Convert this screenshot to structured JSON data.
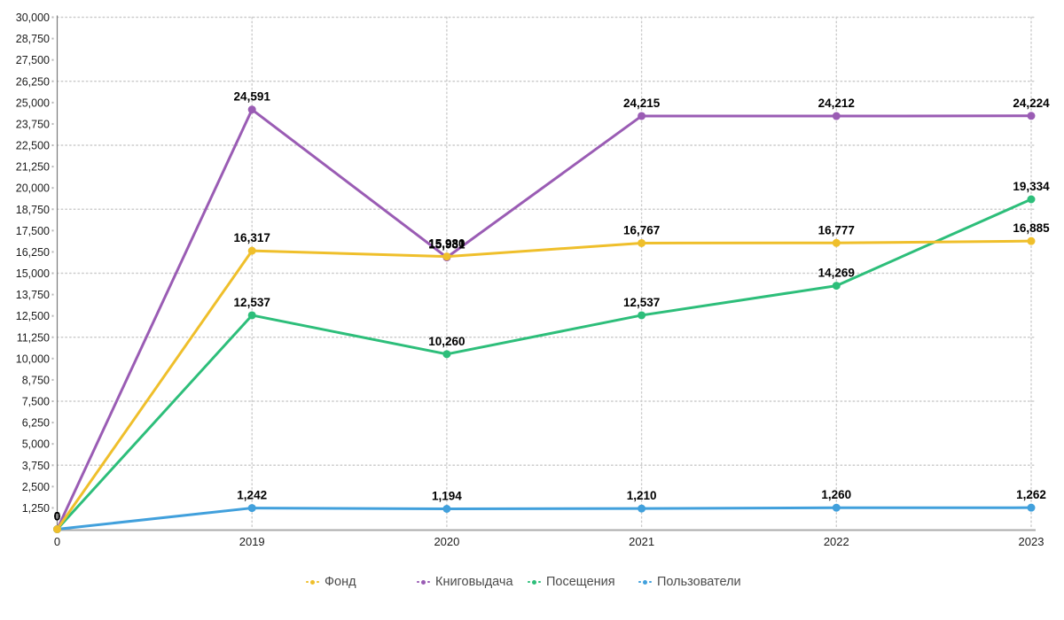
{
  "chart_data": {
    "type": "line",
    "title": "",
    "categories": [
      "0",
      "2019",
      "2020",
      "2021",
      "2022",
      "2023"
    ],
    "series": [
      {
        "id": "fond",
        "name": "Фонд",
        "color": "#EFBF2B",
        "values": [
          0,
          16317,
          15980,
          16767,
          16777,
          16885
        ],
        "labels": [
          "0",
          "16,317",
          "15,980",
          "16,767",
          "16,777",
          "16,885"
        ]
      },
      {
        "id": "knigovydacha",
        "name": "Книговыдача",
        "color": "#9A5CB4",
        "values": [
          0,
          24591,
          15931,
          24215,
          24212,
          24224
        ],
        "labels": [
          "0",
          "24,591",
          "15,931",
          "24,215",
          "24,212",
          "24,224"
        ]
      },
      {
        "id": "poseshcheniya",
        "name": "Посещения",
        "color": "#2DBE7A",
        "values": [
          0,
          12537,
          10260,
          12537,
          14269,
          19334
        ],
        "labels": [
          "0",
          "12,537",
          "10,260",
          "12,537",
          "14,269",
          "19,334"
        ]
      },
      {
        "id": "polzovateli",
        "name": "Пользователи",
        "color": "#41A0DC",
        "values": [
          0,
          1242,
          1194,
          1210,
          1260,
          1262
        ],
        "labels": [
          "0",
          "1,242",
          "1,194",
          "1,210",
          "1,260",
          "1,262"
        ]
      }
    ],
    "xlabel": "",
    "ylabel": "",
    "ylim": [
      0,
      30000
    ],
    "y_tick_step": 1250,
    "gridline_step": 3750,
    "grid": "dotted",
    "legend_position": "bottom"
  },
  "axis": {
    "y_tick_labels": [
      "1,250",
      "2,500",
      "3,750",
      "5,000",
      "6,250",
      "7,500",
      "8,750",
      "10,000",
      "11,250",
      "12,500",
      "13,750",
      "15,000",
      "16,250",
      "17,500",
      "18,750",
      "20,000",
      "21,250",
      "22,500",
      "23,750",
      "25,000",
      "26,250",
      "27,500",
      "28,750",
      "30,000"
    ],
    "x_tick_labels": [
      "0",
      "2019",
      "2020",
      "2021",
      "2022",
      "2023"
    ]
  },
  "legend": {
    "items": [
      {
        "id": "fond",
        "label": "Фонд",
        "color": "#EFBF2B"
      },
      {
        "id": "knigovydacha",
        "label": "Книговыдача",
        "color": "#9A5CB4"
      },
      {
        "id": "poseshcheniya",
        "label": "Посещения",
        "color": "#2DBE7A"
      },
      {
        "id": "polzovateli",
        "label": "Пользователи",
        "color": "#41A0DC"
      }
    ]
  },
  "colors": {
    "grid": "#cccccc",
    "y_axis_line": "#7a7a7a",
    "x_axis_line": "#ababab",
    "tick_dot": "#b5b5b5",
    "tick_text": "#1c1c1c",
    "data_label": "#000000",
    "legend_text": "#4a4a4a",
    "background": "#ffffff"
  }
}
